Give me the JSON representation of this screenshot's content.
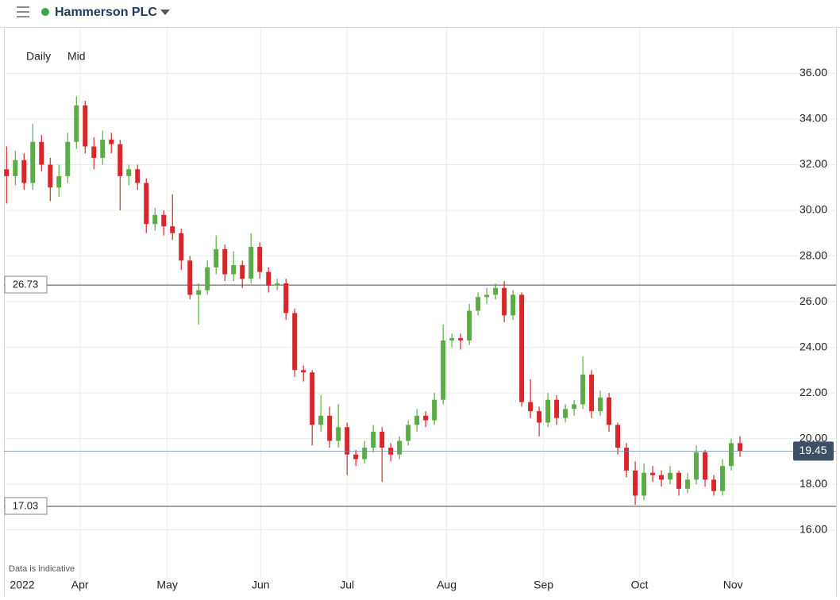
{
  "header": {
    "title": "Hammerson PLC"
  },
  "chart_data": {
    "type": "candlestick",
    "interval_buttons": [
      "Daily",
      "Mid"
    ],
    "note": "Data is indicative",
    "open": [
      31.8,
      31.5,
      32.2,
      31.2,
      33.0,
      32.0,
      31.0,
      31.5,
      33.0,
      34.6,
      32.8,
      32.3,
      33.1,
      32.9,
      31.5,
      31.8,
      31.2,
      29.4,
      29.8,
      29.3,
      29.0,
      27.8,
      26.3,
      26.5,
      27.5,
      28.3,
      27.2,
      27.6,
      27.0,
      28.4,
      27.3,
      26.7,
      26.8,
      25.5,
      23.0,
      22.9,
      20.6,
      21.0,
      19.9,
      20.5,
      19.3,
      19.1,
      19.6,
      20.3,
      19.6,
      19.3,
      19.9,
      20.6,
      21.0,
      20.8,
      21.7,
      24.3,
      24.4,
      24.3,
      25.6,
      26.2,
      26.3,
      26.6,
      25.4,
      26.3,
      21.6,
      21.2,
      20.7,
      21.7,
      20.9,
      21.3,
      21.5,
      22.8,
      21.2,
      21.8,
      20.6,
      19.6,
      18.6,
      17.5,
      18.5,
      18.4,
      18.2,
      18.5,
      17.8,
      18.2,
      19.4,
      18.2,
      17.7,
      18.8,
      19.8
    ],
    "high": [
      32.8,
      32.6,
      32.5,
      33.8,
      33.3,
      32.3,
      32.0,
      33.4,
      35.0,
      34.8,
      33.2,
      33.5,
      33.4,
      33.1,
      32.0,
      32.0,
      31.4,
      30.1,
      30.0,
      30.7,
      29.2,
      28.0,
      26.8,
      27.8,
      28.9,
      28.5,
      28.2,
      27.8,
      29.0,
      28.6,
      27.5,
      27.0,
      27.0,
      25.7,
      23.2,
      23.0,
      21.9,
      21.4,
      21.5,
      20.7,
      19.5,
      19.9,
      20.6,
      20.5,
      19.8,
      20.1,
      20.8,
      21.3,
      21.2,
      22.0,
      25.0,
      24.6,
      24.6,
      25.9,
      26.4,
      26.6,
      26.8,
      26.9,
      26.5,
      26.4,
      22.6,
      21.4,
      22.0,
      21.9,
      21.5,
      21.7,
      23.6,
      23.0,
      22.1,
      22.0,
      20.7,
      19.8,
      19.0,
      18.9,
      18.8,
      18.6,
      18.8,
      18.6,
      18.5,
      19.7,
      19.5,
      18.4,
      19.1,
      20.0,
      20.1
    ],
    "low": [
      30.3,
      31.1,
      30.9,
      30.9,
      31.7,
      30.4,
      30.6,
      31.2,
      32.7,
      32.5,
      31.8,
      32.0,
      32.5,
      30.0,
      31.1,
      30.9,
      29.0,
      29.1,
      28.9,
      28.7,
      27.4,
      26.1,
      25.0,
      26.3,
      27.2,
      26.9,
      26.9,
      26.6,
      26.8,
      27.0,
      26.4,
      26.5,
      25.2,
      22.7,
      22.5,
      19.7,
      20.3,
      19.6,
      19.6,
      18.4,
      18.8,
      18.9,
      19.4,
      18.1,
      19.0,
      19.1,
      19.7,
      20.3,
      20.5,
      20.6,
      21.5,
      24.0,
      23.9,
      24.1,
      25.4,
      25.9,
      26.1,
      25.1,
      25.2,
      21.4,
      20.9,
      20.1,
      20.5,
      20.6,
      20.7,
      21.0,
      21.3,
      20.9,
      21.0,
      20.3,
      19.3,
      18.3,
      17.1,
      17.3,
      18.1,
      17.9,
      18.0,
      17.5,
      17.6,
      18.0,
      17.9,
      17.5,
      17.5,
      18.6,
      19.2
    ],
    "close": [
      31.5,
      32.2,
      31.2,
      33.0,
      32.0,
      31.0,
      31.5,
      33.0,
      34.6,
      32.8,
      32.3,
      33.1,
      32.9,
      31.5,
      31.8,
      31.2,
      29.4,
      29.8,
      29.3,
      29.0,
      27.8,
      26.3,
      26.5,
      27.5,
      28.3,
      27.2,
      27.6,
      27.0,
      28.4,
      27.3,
      26.7,
      26.8,
      25.5,
      23.0,
      22.9,
      20.6,
      21.0,
      19.9,
      20.5,
      19.3,
      19.1,
      19.6,
      20.3,
      19.6,
      19.3,
      19.9,
      20.6,
      21.0,
      20.8,
      21.7,
      24.3,
      24.4,
      24.3,
      25.6,
      26.2,
      26.3,
      26.6,
      25.4,
      26.3,
      21.6,
      21.2,
      20.7,
      21.7,
      20.9,
      21.3,
      21.5,
      22.8,
      21.2,
      21.8,
      20.6,
      19.6,
      18.6,
      17.5,
      18.5,
      18.4,
      18.2,
      18.5,
      17.8,
      18.2,
      19.4,
      18.2,
      17.7,
      18.8,
      19.8,
      19.45
    ],
    "up_color": "#5aac44",
    "down_color": "#d9262b",
    "levels": [
      26.73,
      17.03
    ],
    "last_price": 19.45,
    "xlim": [
      -0.3,
      95
    ],
    "xticks": [
      {
        "value": 1.8,
        "label": "2022"
      },
      {
        "value": 8.4,
        "label": "Apr"
      },
      {
        "value": 18.4,
        "label": "May"
      },
      {
        "value": 29.1,
        "label": "Jun"
      },
      {
        "value": 39,
        "label": "Jul"
      },
      {
        "value": 50.4,
        "label": "Aug"
      },
      {
        "value": 61.5,
        "label": "Sep"
      },
      {
        "value": 72.5,
        "label": "Oct"
      },
      {
        "value": 83.2,
        "label": "Nov"
      }
    ],
    "ylim": [
      13.9,
      38
    ],
    "yticks": [
      {
        "value": 16,
        "label": "16.00"
      },
      {
        "value": 18,
        "label": "18.00"
      },
      {
        "value": 20,
        "label": "20.00"
      },
      {
        "value": 22,
        "label": "22.00"
      },
      {
        "value": 24,
        "label": "24.00"
      },
      {
        "value": 26,
        "label": "26.00"
      },
      {
        "value": 28,
        "label": "28.00"
      },
      {
        "value": 30,
        "label": "30.00"
      },
      {
        "value": 32,
        "label": "32.00"
      },
      {
        "value": 34,
        "label": "34.00"
      },
      {
        "value": 36,
        "label": "36.00"
      }
    ],
    "grid": true
  }
}
